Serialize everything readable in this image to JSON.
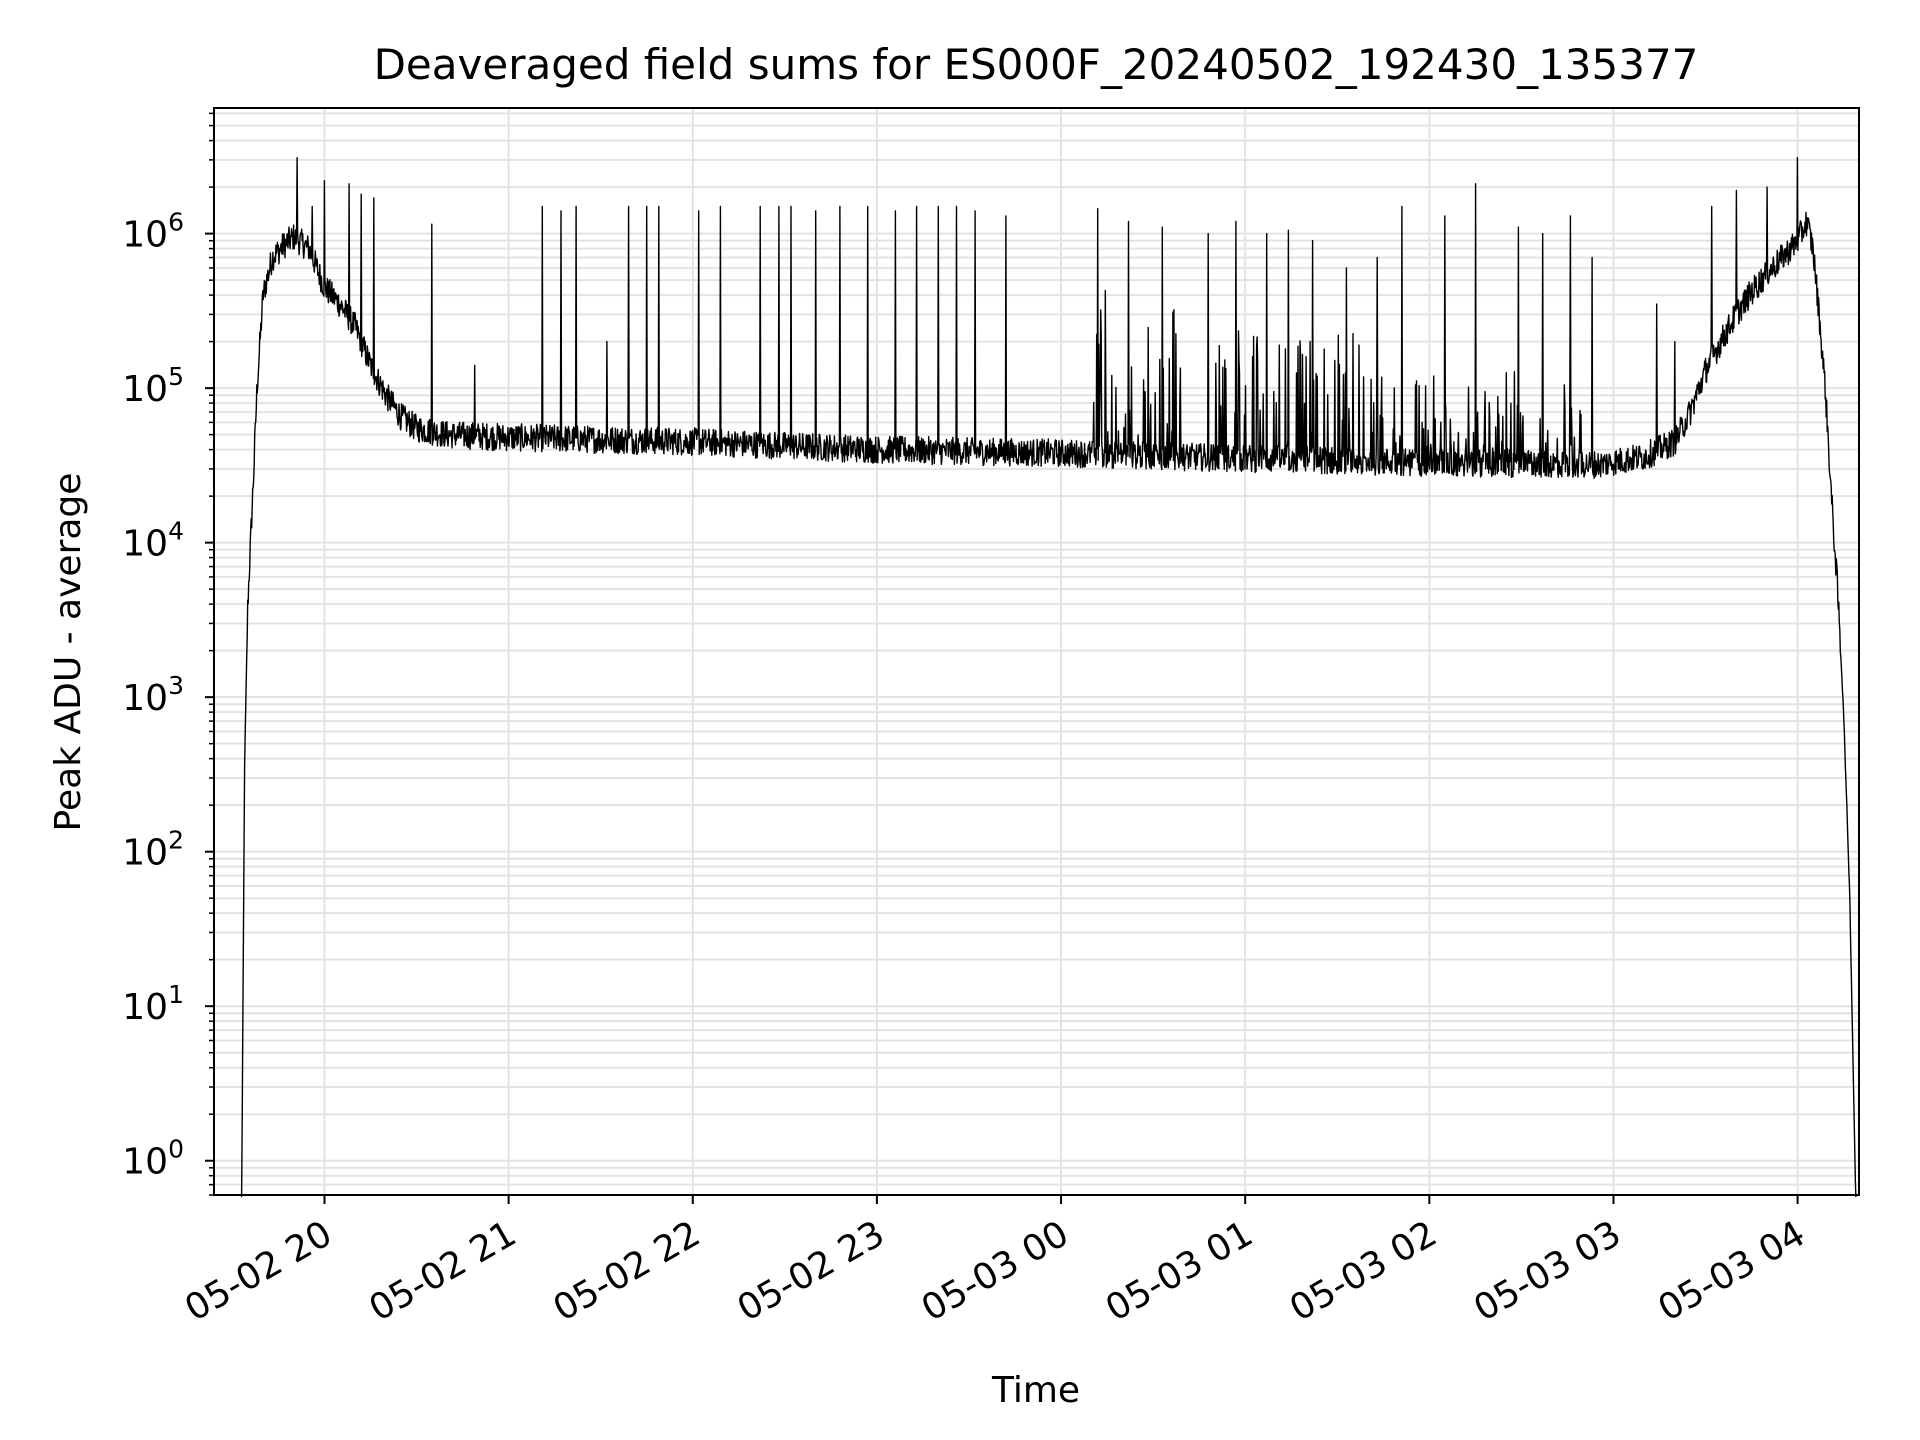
{
  "chart_data": {
    "type": "line",
    "title": "Deaveraged field sums for ES000F_20240502_192430_135377",
    "xlabel": "Time",
    "ylabel": "Peak ADU - average",
    "yscale": "log",
    "ylim": [
      0.6,
      6500000
    ],
    "xlim": [
      "2024-05-02 19:24",
      "2024-05-03 04:20"
    ],
    "grid": true,
    "line_color": "#000000",
    "grid_color": "#e3e3e3",
    "x_ticks": [
      {
        "t": "2024-05-02 20:00",
        "label": "05-02 20"
      },
      {
        "t": "2024-05-02 21:00",
        "label": "05-02 21"
      },
      {
        "t": "2024-05-02 22:00",
        "label": "05-02 22"
      },
      {
        "t": "2024-05-02 23:00",
        "label": "05-02 23"
      },
      {
        "t": "2024-05-03 00:00",
        "label": "05-03 00"
      },
      {
        "t": "2024-05-03 01:00",
        "label": "05-03 01"
      },
      {
        "t": "2024-05-03 02:00",
        "label": "05-03 02"
      },
      {
        "t": "2024-05-03 03:00",
        "label": "05-03 03"
      },
      {
        "t": "2024-05-03 04:00",
        "label": "05-03 04"
      }
    ],
    "y_ticks": [
      {
        "value": 1,
        "base": "10",
        "exp": "0"
      },
      {
        "value": 10,
        "base": "10",
        "exp": "1"
      },
      {
        "value": 100,
        "base": "10",
        "exp": "2"
      },
      {
        "value": 1000,
        "base": "10",
        "exp": "3"
      },
      {
        "value": 10000,
        "base": "10",
        "exp": "4"
      },
      {
        "value": 100000,
        "base": "10",
        "exp": "5"
      },
      {
        "value": 1000000,
        "base": "10",
        "exp": "6"
      }
    ],
    "series": [
      {
        "profile": [
          [
            "2024-05-02 19:33",
            0.5
          ],
          [
            "2024-05-02 19:34",
            400
          ],
          [
            "2024-05-02 19:35",
            4000
          ],
          [
            "2024-05-02 19:37",
            30000
          ],
          [
            "2024-05-02 19:38",
            100000
          ],
          [
            "2024-05-02 19:40",
            400000
          ],
          [
            "2024-05-02 19:43",
            700000
          ],
          [
            "2024-05-02 19:47",
            850000
          ],
          [
            "2024-05-02 19:50",
            950000
          ],
          [
            "2024-05-02 19:55",
            800000
          ],
          [
            "2024-05-02 20:00",
            450000
          ],
          [
            "2024-05-02 20:05",
            350000
          ],
          [
            "2024-05-02 20:10",
            250000
          ],
          [
            "2024-05-02 20:15",
            140000
          ],
          [
            "2024-05-02 20:20",
            90000
          ],
          [
            "2024-05-02 20:25",
            65000
          ],
          [
            "2024-05-02 20:30",
            55000
          ],
          [
            "2024-05-02 20:40",
            50000
          ],
          [
            "2024-05-02 21:00",
            48000
          ],
          [
            "2024-05-02 22:00",
            45000
          ],
          [
            "2024-05-02 23:00",
            40000
          ],
          [
            "2024-05-03 00:00",
            38000
          ],
          [
            "2024-05-03 01:00",
            35000
          ],
          [
            "2024-05-03 02:00",
            33000
          ],
          [
            "2024-05-03 02:55",
            32000
          ],
          [
            "2024-05-03 03:10",
            36000
          ],
          [
            "2024-05-03 03:20",
            45000
          ],
          [
            "2024-05-03 03:25",
            70000
          ],
          [
            "2024-05-03 03:30",
            130000
          ],
          [
            "2024-05-03 03:35",
            200000
          ],
          [
            "2024-05-03 03:40",
            300000
          ],
          [
            "2024-05-03 03:45",
            420000
          ],
          [
            "2024-05-03 03:50",
            550000
          ],
          [
            "2024-05-03 03:55",
            700000
          ],
          [
            "2024-05-03 04:00",
            900000
          ],
          [
            "2024-05-03 04:03",
            1200000
          ],
          [
            "2024-05-03 04:05",
            800000
          ],
          [
            "2024-05-03 04:07",
            300000
          ],
          [
            "2024-05-03 04:09",
            100000
          ],
          [
            "2024-05-03 04:11",
            20000
          ],
          [
            "2024-05-03 04:13",
            5000
          ],
          [
            "2024-05-03 04:15",
            800
          ],
          [
            "2024-05-03 04:17",
            50
          ],
          [
            "2024-05-03 04:19",
            0.5
          ]
        ],
        "spikes": [
          [
            "2024-05-02 19:51",
            3100000
          ],
          [
            "2024-05-02 19:56",
            1500000
          ],
          [
            "2024-05-02 20:00",
            2200000
          ],
          [
            "2024-05-02 20:08",
            2100000
          ],
          [
            "2024-05-02 20:12",
            1800000
          ],
          [
            "2024-05-02 20:16",
            1700000
          ],
          [
            "2024-05-02 20:35",
            1150000
          ],
          [
            "2024-05-02 20:49",
            140000
          ],
          [
            "2024-05-02 21:11",
            1500000
          ],
          [
            "2024-05-02 21:17",
            1400000
          ],
          [
            "2024-05-02 21:22",
            1500000
          ],
          [
            "2024-05-02 21:32",
            200000
          ],
          [
            "2024-05-02 21:39",
            1500000
          ],
          [
            "2024-05-02 21:45",
            1500000
          ],
          [
            "2024-05-02 21:49",
            1500000
          ],
          [
            "2024-05-02 22:02",
            1400000
          ],
          [
            "2024-05-02 22:09",
            1500000
          ],
          [
            "2024-05-02 22:22",
            1500000
          ],
          [
            "2024-05-02 22:28",
            1500000
          ],
          [
            "2024-05-02 22:32",
            1500000
          ],
          [
            "2024-05-02 22:40",
            1400000
          ],
          [
            "2024-05-02 22:48",
            1500000
          ],
          [
            "2024-05-02 22:57",
            1500000
          ],
          [
            "2024-05-02 23:06",
            1400000
          ],
          [
            "2024-05-02 23:13",
            1500000
          ],
          [
            "2024-05-02 23:20",
            1500000
          ],
          [
            "2024-05-02 23:26",
            1500000
          ],
          [
            "2024-05-02 23:32",
            1400000
          ],
          [
            "2024-05-02 23:42",
            1300000
          ],
          [
            "2024-05-03 00:12",
            1450000
          ],
          [
            "2024-05-03 00:22",
            1200000
          ],
          [
            "2024-05-03 00:33",
            1100000
          ],
          [
            "2024-05-03 00:48",
            1000000
          ],
          [
            "2024-05-03 00:57",
            1200000
          ],
          [
            "2024-05-03 01:07",
            1000000
          ],
          [
            "2024-05-03 01:14",
            1050000
          ],
          [
            "2024-05-03 01:22",
            900000
          ],
          [
            "2024-05-03 01:33",
            600000
          ],
          [
            "2024-05-03 01:43",
            700000
          ],
          [
            "2024-05-03 01:51",
            1500000
          ],
          [
            "2024-05-03 02:05",
            1300000
          ],
          [
            "2024-05-03 02:15",
            2100000
          ],
          [
            "2024-05-03 02:29",
            1100000
          ],
          [
            "2024-05-03 02:37",
            1000000
          ],
          [
            "2024-05-03 02:46",
            1300000
          ],
          [
            "2024-05-03 02:53",
            700000
          ],
          [
            "2024-05-03 03:14",
            350000
          ],
          [
            "2024-05-03 03:20",
            200000
          ],
          [
            "2024-05-03 03:32",
            1500000
          ],
          [
            "2024-05-03 03:40",
            1900000
          ],
          [
            "2024-05-03 03:50",
            2000000
          ],
          [
            "2024-05-03 04:00",
            3100000
          ]
        ],
        "dense_spike_intervals": [
          [
            "2024-05-03 00:10",
            "2024-05-03 00:40",
            400000
          ],
          [
            "2024-05-03 00:50",
            "2024-05-03 01:40",
            200000
          ],
          [
            "2024-05-03 01:40",
            "2024-05-03 02:50",
            90000
          ]
        ]
      }
    ]
  }
}
